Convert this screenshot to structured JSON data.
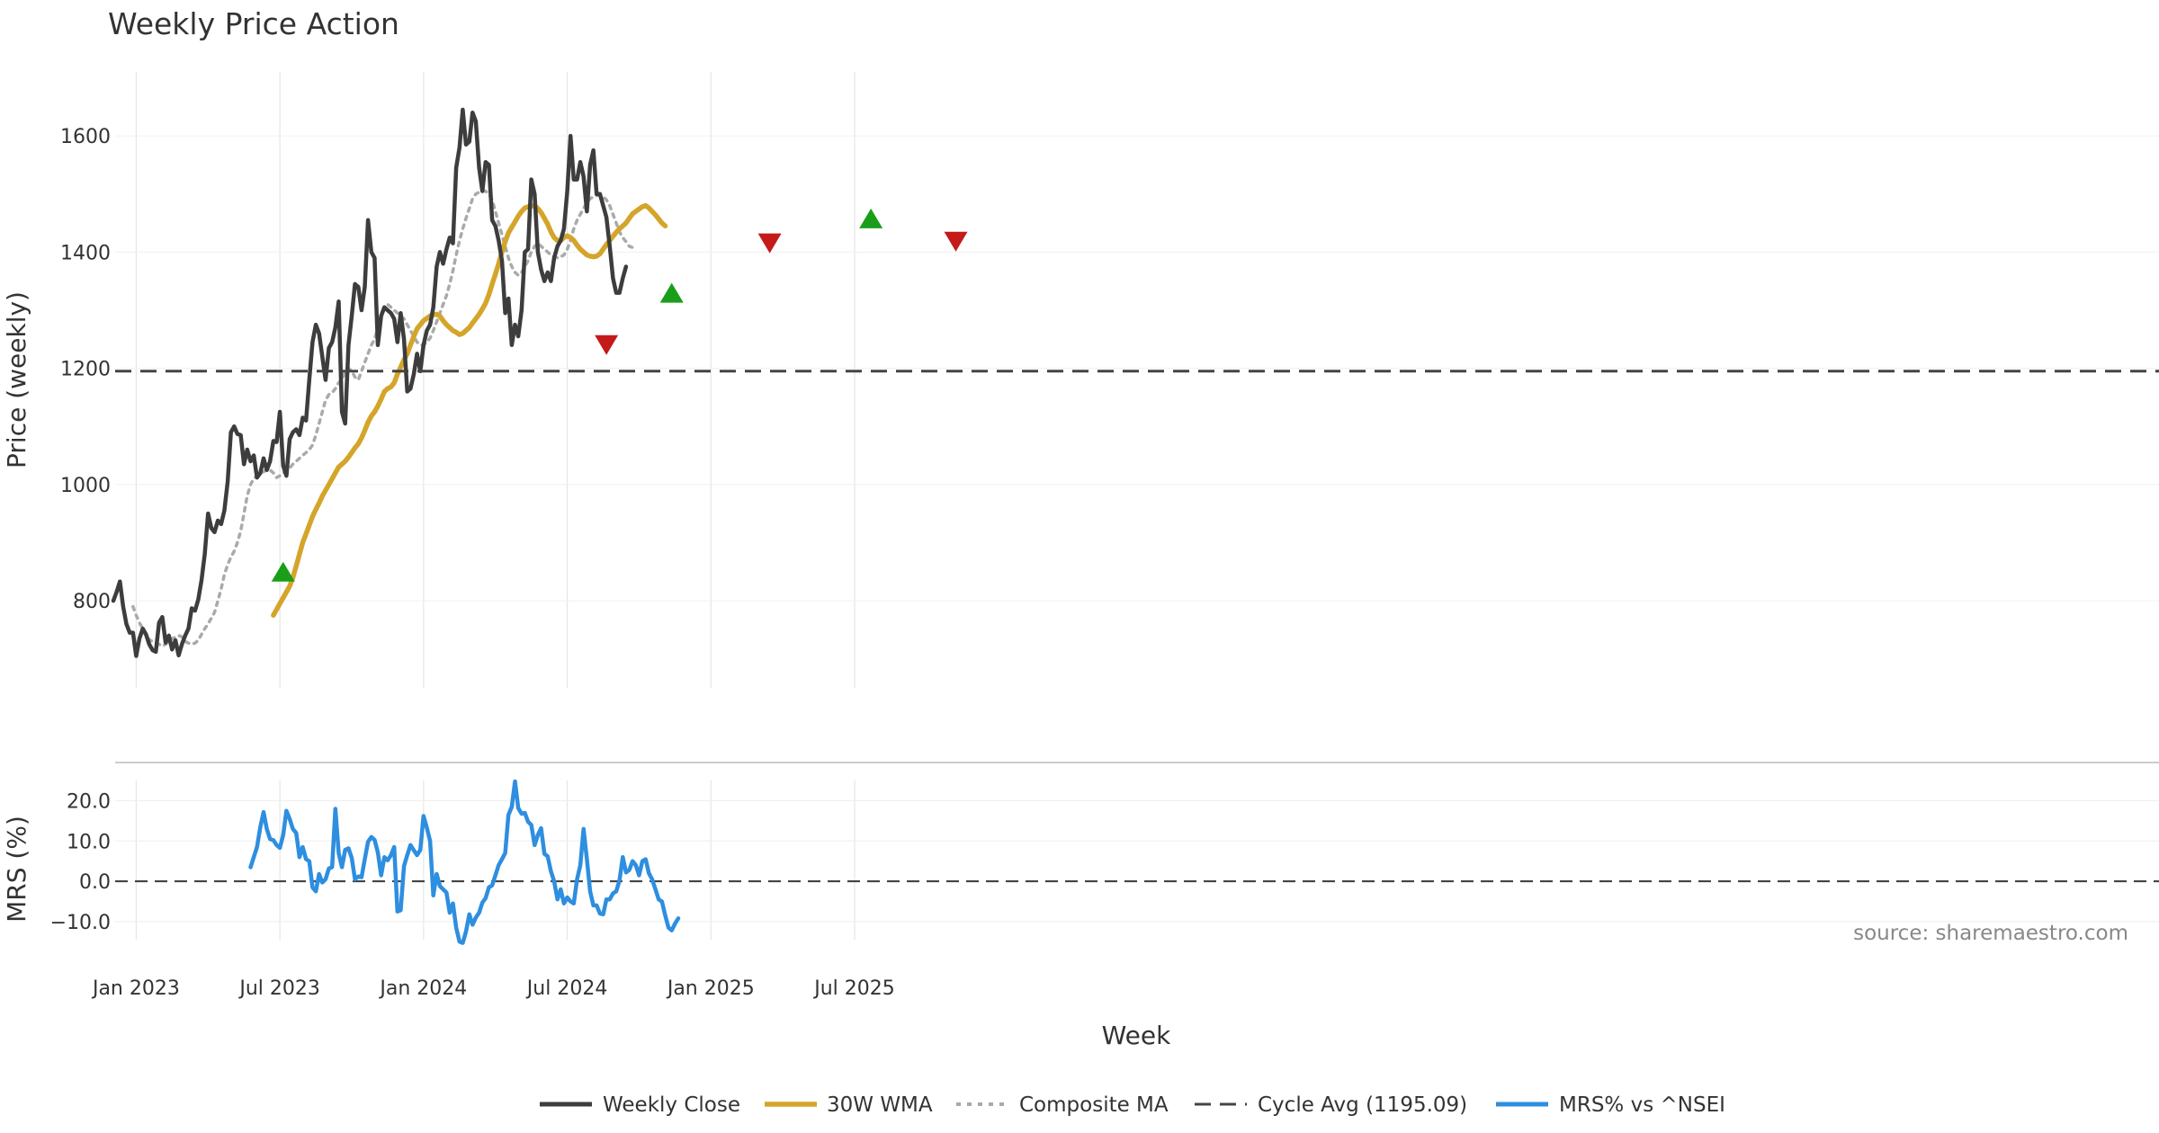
{
  "chart_data": {
    "type": "line",
    "title": "Weekly Price Action",
    "source": "source: sharemaestro.com",
    "xlabel": "Week",
    "x_ticks": [
      "Jan 2023",
      "Jul 2023",
      "Jan 2024",
      "Jul 2024",
      "Jan 2025",
      "Jul 2025"
    ],
    "x_tick_weeks": [
      7,
      51,
      95,
      139,
      183,
      227
    ],
    "price_panel": {
      "ylabel": "Price (weekly)",
      "ylim": [
        650,
        1710
      ],
      "y_ticks": [
        800,
        1000,
        1200,
        1400,
        1600
      ],
      "cycle_avg": 1195.09,
      "series": [
        {
          "name": "Weekly Close",
          "start_week": 0,
          "values": [
            800,
            815,
            833,
            790,
            760,
            745,
            745,
            705,
            735,
            752,
            742,
            725,
            715,
            712,
            762,
            772,
            728,
            740,
            716,
            732,
            706,
            725,
            740,
            752,
            787,
            783,
            802,
            835,
            880,
            950,
            925,
            918,
            938,
            932,
            955,
            1005,
            1090,
            1100,
            1087,
            1085,
            1035,
            1060,
            1040,
            1050,
            1012,
            1020,
            1045,
            1025,
            1040,
            1075,
            1073,
            1125,
            1032,
            1015,
            1078,
            1090,
            1095,
            1085,
            1115,
            1110,
            1180,
            1245,
            1275,
            1260,
            1220,
            1180,
            1235,
            1245,
            1270,
            1315,
            1125,
            1105,
            1240,
            1290,
            1345,
            1340,
            1300,
            1340,
            1455,
            1400,
            1390,
            1240,
            1290,
            1305,
            1300,
            1295,
            1285,
            1245,
            1295,
            1250,
            1160,
            1165,
            1190,
            1225,
            1195,
            1240,
            1265,
            1275,
            1305,
            1375,
            1400,
            1380,
            1405,
            1425,
            1415,
            1545,
            1580,
            1645,
            1585,
            1590,
            1640,
            1625,
            1545,
            1505,
            1555,
            1550,
            1455,
            1445,
            1420,
            1385,
            1295,
            1320,
            1240,
            1275,
            1255,
            1300,
            1400,
            1405,
            1525,
            1500,
            1400,
            1370,
            1350,
            1365,
            1350,
            1390,
            1410,
            1420,
            1440,
            1505,
            1600,
            1525,
            1525,
            1555,
            1530,
            1470,
            1550,
            1575,
            1500,
            1500,
            1480,
            1460,
            1410,
            1355,
            1330,
            1330,
            1355,
            1375
          ]
        },
        {
          "name": "30W WMA",
          "start_week": 49,
          "values": [
            775,
            785,
            795,
            805,
            815,
            825,
            840,
            860,
            880,
            900,
            915,
            930,
            945,
            957,
            968,
            980,
            990,
            1000,
            1010,
            1020,
            1030,
            1035,
            1040,
            1047,
            1055,
            1063,
            1070,
            1080,
            1093,
            1107,
            1118,
            1125,
            1135,
            1147,
            1160,
            1165,
            1168,
            1175,
            1190,
            1202,
            1215,
            1225,
            1240,
            1255,
            1268,
            1275,
            1282,
            1286,
            1290,
            1292,
            1293,
            1290,
            1282,
            1275,
            1270,
            1265,
            1262,
            1258,
            1260,
            1265,
            1270,
            1278,
            1285,
            1293,
            1302,
            1312,
            1327,
            1345,
            1362,
            1380,
            1400,
            1418,
            1433,
            1443,
            1452,
            1462,
            1470,
            1476,
            1478,
            1479,
            1480,
            1475,
            1468,
            1458,
            1448,
            1435,
            1425,
            1420,
            1420,
            1425,
            1428,
            1425,
            1420,
            1412,
            1405,
            1400,
            1395,
            1393,
            1392,
            1393,
            1397,
            1405,
            1413,
            1420,
            1427,
            1434,
            1440,
            1445,
            1450,
            1458,
            1466,
            1470,
            1474,
            1478,
            1480,
            1476,
            1470,
            1464,
            1457,
            1450,
            1445
          ]
        },
        {
          "name": "Composite MA",
          "start_week": 6,
          "values": [
            790,
            775,
            762,
            752,
            742,
            733,
            730,
            728,
            725,
            722,
            725,
            730,
            735,
            737,
            740,
            738,
            730,
            727,
            725,
            727,
            732,
            742,
            752,
            760,
            770,
            780,
            800,
            820,
            845,
            862,
            875,
            885,
            900,
            920,
            950,
            980,
            1000,
            1010,
            1015,
            1020,
            1022,
            1025,
            1025,
            1020,
            1012,
            1015,
            1020,
            1022,
            1028,
            1035,
            1040,
            1045,
            1050,
            1055,
            1060,
            1068,
            1085,
            1105,
            1125,
            1145,
            1155,
            1158,
            1165,
            1175,
            1180,
            1195,
            1200,
            1195,
            1185,
            1180,
            1195,
            1210,
            1225,
            1240,
            1250,
            1270,
            1290,
            1305,
            1310,
            1305,
            1300,
            1295,
            1290,
            1285,
            1275,
            1265,
            1255,
            1245,
            1240,
            1240,
            1245,
            1252,
            1265,
            1280,
            1295,
            1310,
            1325,
            1345,
            1368,
            1395,
            1420,
            1440,
            1458,
            1475,
            1492,
            1500,
            1503,
            1505,
            1505,
            1500,
            1490,
            1470,
            1450,
            1430,
            1410,
            1390,
            1375,
            1365,
            1360,
            1365,
            1375,
            1385,
            1400,
            1410,
            1415,
            1410,
            1405,
            1400,
            1395,
            1392,
            1390,
            1392,
            1395,
            1405,
            1420,
            1440,
            1455,
            1465,
            1475,
            1485,
            1492,
            1495,
            1497,
            1498,
            1495,
            1490,
            1480,
            1465,
            1450,
            1435,
            1425,
            1418,
            1410,
            1408
          ]
        }
      ],
      "buy_signals": [
        {
          "week": 52,
          "value": 850
        },
        {
          "week": 171,
          "value": 1330
        },
        {
          "week": 232,
          "value": 1458
        }
      ],
      "sell_signals": [
        {
          "week": 151,
          "value": 1240
        },
        {
          "week": 201,
          "value": 1415
        },
        {
          "week": 258,
          "value": 1418
        }
      ]
    },
    "mrs_panel": {
      "ylabel": "MRS (%)",
      "ylim": [
        -14.5,
        29.5
      ],
      "y_ticks": [
        20,
        10,
        0,
        -10
      ],
      "y_tick_labels": [
        "20.0",
        "10.0",
        "0.0",
        "−10.0"
      ],
      "series": [
        {
          "name": "MRS% vs ^NSEI",
          "start_week": 42,
          "values": [
            3.5,
            6,
            8.5,
            13.5,
            17.2,
            13,
            10.5,
            10.2,
            9,
            8.3,
            11.5,
            17.5,
            15.5,
            13,
            12,
            6,
            8.5,
            5.5,
            5,
            -1.5,
            -2.5,
            1.8,
            -0.3,
            0.5,
            3.2,
            3.5,
            18,
            7,
            3.5,
            7.8,
            8.2,
            5.8,
            0.5,
            1.2,
            1,
            5.5,
            9.8,
            11,
            10.3,
            7.2,
            1.5,
            6,
            5.2,
            6.5,
            8.5,
            -7.5,
            -7.2,
            3.8,
            6.5,
            9,
            7.7,
            6.5,
            7.8,
            16.2,
            13.3,
            10,
            -3.5,
            1.8,
            -1.2,
            -2,
            -2.8,
            -7.8,
            -5.5,
            -11.5,
            -15,
            -15.3,
            -12.5,
            -8.2,
            -10.8,
            -9,
            -7.8,
            -5.3,
            -4.2,
            -1.5,
            -1,
            1.5,
            4,
            5.5,
            7,
            16.5,
            18.5,
            24.8,
            18.2,
            16.8,
            17,
            14.8,
            14,
            9,
            11.5,
            13.2,
            6.8,
            6.2,
            2.5,
            0,
            -4.5,
            -2,
            -5.5,
            -4,
            -5,
            -5.5,
            0.5,
            4,
            13,
            5.5,
            -2.5,
            -6,
            -6,
            -8,
            -8.2,
            -4.5,
            -4.5,
            -3,
            -2.5,
            0.2,
            6,
            2.2,
            2.8,
            5,
            4,
            1.5,
            5,
            5.5,
            2,
            0.5,
            -2,
            -4.5,
            -5,
            -8.5,
            -11.5,
            -12.2,
            -10.5,
            -9.2
          ]
        }
      ]
    },
    "legend": [
      "Weekly Close",
      "30W WMA",
      "Composite MA",
      "Cycle Avg (1195.09)",
      "MRS% vs ^NSEI"
    ],
    "colors": {
      "weekly_close": "#3d3d3d",
      "wma": "#d4a52a",
      "composite": "#aaaaaa",
      "cycle_avg": "#444444",
      "mrs": "#2e8ee0",
      "buy": "#1a9e1a",
      "sell": "#c41a1a",
      "grid": "#e6e6e6"
    }
  }
}
